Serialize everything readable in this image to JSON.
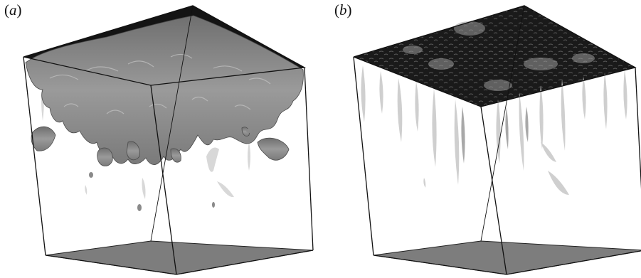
{
  "panels": [
    {
      "open": "(",
      "letter": "a",
      "close": ")"
    },
    {
      "open": "(",
      "letter": "b",
      "close": ")"
    }
  ],
  "colors": {
    "background": "#ffffff",
    "edge": "#111111",
    "floor": "#7d7d7d",
    "top_dark": "#0e0e0e",
    "isosurface": "#8a8a8a",
    "shadow_streak": "#d6d6d6"
  }
}
